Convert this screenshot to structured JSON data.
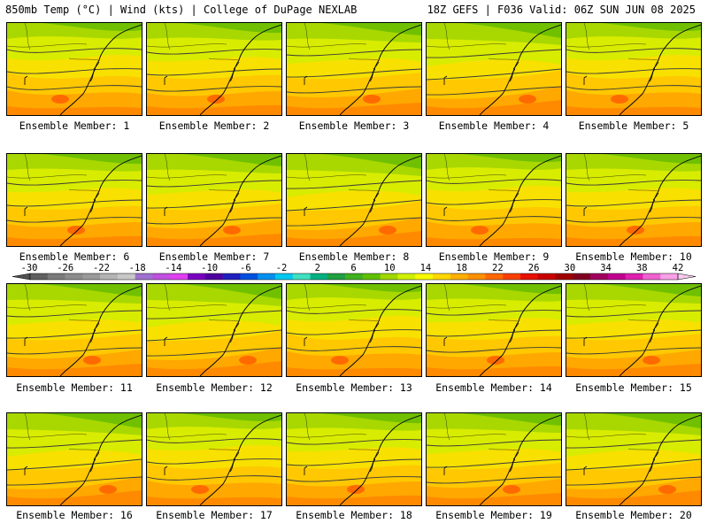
{
  "header": {
    "left": "850mb Temp (°C) | Wind (kts) | College of DuPage NEXLAB",
    "right": "18Z GEFS | F036 Valid: 06Z SUN JUN 08 2025"
  },
  "panels": [
    {
      "label": "Ensemble Member: 1"
    },
    {
      "label": "Ensemble Member: 2"
    },
    {
      "label": "Ensemble Member: 3"
    },
    {
      "label": "Ensemble Member: 4"
    },
    {
      "label": "Ensemble Member: 5"
    },
    {
      "label": "Ensemble Member: 6"
    },
    {
      "label": "Ensemble Member: 7"
    },
    {
      "label": "Ensemble Member: 8"
    },
    {
      "label": "Ensemble Member: 9"
    },
    {
      "label": "Ensemble Member: 10"
    },
    {
      "label": "Ensemble Member: 11"
    },
    {
      "label": "Ensemble Member: 12"
    },
    {
      "label": "Ensemble Member: 13"
    },
    {
      "label": "Ensemble Member: 14"
    },
    {
      "label": "Ensemble Member: 15"
    },
    {
      "label": "Ensemble Member: 16"
    },
    {
      "label": "Ensemble Member: 17"
    },
    {
      "label": "Ensemble Member: 18"
    },
    {
      "label": "Ensemble Member: 19"
    },
    {
      "label": "Ensemble Member: 20"
    }
  ],
  "colorbar": {
    "tick_labels": [
      "-30",
      "-26",
      "-22",
      "-18",
      "-14",
      "-10",
      "-6",
      "-2",
      "2",
      "6",
      "10",
      "14",
      "18",
      "22",
      "26",
      "30",
      "34",
      "38",
      "42"
    ],
    "colors": [
      "#606060",
      "#7a7a7a",
      "#8c8c8c",
      "#9a9a9a",
      "#b4b4b4",
      "#c8c8c8",
      "#a070d0",
      "#c050e0",
      "#e040f0",
      "#7a00c0",
      "#5000a0",
      "#2020c0",
      "#0050e0",
      "#0090f0",
      "#00c8f0",
      "#40e0c0",
      "#00b080",
      "#20a040",
      "#40b020",
      "#60c000",
      "#a0d800",
      "#d0f000",
      "#f8f800",
      "#ffd800",
      "#ffb000",
      "#ff9000",
      "#ff6800",
      "#f84000",
      "#e81000",
      "#c80000",
      "#a00000",
      "#800020",
      "#a00060",
      "#c00090",
      "#e020b0",
      "#f060d0",
      "#f8a0e8"
    ]
  }
}
